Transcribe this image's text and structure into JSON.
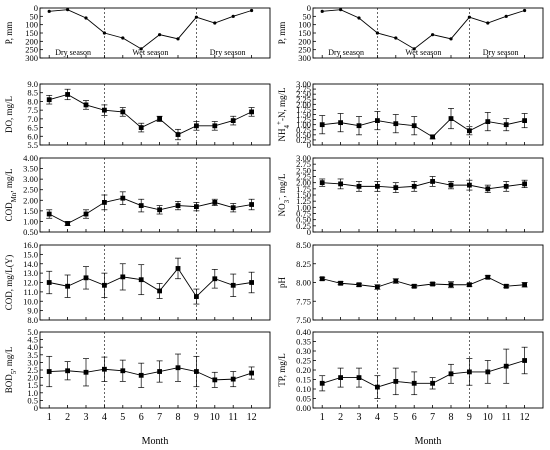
{
  "x_label": "Month",
  "seasons": [
    "Dry season",
    "Wet season",
    "Dry season"
  ],
  "chart_data": [
    {
      "type": "line",
      "ylabel": "P, mm",
      "ylim": [
        0,
        300
      ],
      "inverted": true,
      "yticks": [
        "0",
        "50",
        "100",
        "150",
        "200",
        "250",
        "300"
      ],
      "x": [
        1,
        2,
        3,
        4,
        5,
        6,
        7,
        8,
        9,
        10,
        11,
        12
      ],
      "series": [
        {
          "values": [
            20,
            10,
            60,
            150,
            180,
            245,
            160,
            185,
            55,
            90,
            50,
            15
          ]
        }
      ]
    },
    {
      "type": "line",
      "ylabel": "DO, mg/L",
      "ylim": [
        5.5,
        9.0
      ],
      "yticks": [
        "5.5",
        "6.0",
        "6.5",
        "7.0",
        "7.5",
        "8.0",
        "8.5",
        "9.0"
      ],
      "x": [
        1,
        2,
        3,
        4,
        5,
        6,
        7,
        8,
        9,
        10,
        11,
        12
      ],
      "series": [
        {
          "values": [
            8.1,
            8.4,
            7.8,
            7.5,
            7.4,
            6.5,
            7.0,
            6.1,
            6.6,
            6.6,
            6.9,
            7.4
          ],
          "errors": [
            0.25,
            0.3,
            0.25,
            0.3,
            0.25,
            0.25,
            0.15,
            0.3,
            0.25,
            0.25,
            0.25,
            0.25
          ]
        }
      ]
    },
    {
      "type": "line",
      "ylabel": "CODMn, mg/L",
      "ylim": [
        0.5,
        4.0
      ],
      "yticks": [
        "0.50",
        "1.00",
        "1.50",
        "2.00",
        "2.50",
        "3.00",
        "3.50",
        "4.00"
      ],
      "x": [
        1,
        2,
        3,
        4,
        5,
        6,
        7,
        8,
        9,
        10,
        11,
        12
      ],
      "series": [
        {
          "values": [
            1.35,
            0.9,
            1.35,
            1.9,
            2.1,
            1.75,
            1.55,
            1.75,
            1.7,
            1.9,
            1.65,
            1.8
          ],
          "errors": [
            0.2,
            0.1,
            0.2,
            0.35,
            0.3,
            0.3,
            0.2,
            0.2,
            0.2,
            0.15,
            0.2,
            0.25
          ]
        }
      ]
    },
    {
      "type": "line",
      "ylabel": "COD, mg/L(Y)",
      "ylim": [
        8.0,
        16.0
      ],
      "yticks": [
        "8.0",
        "9.0",
        "10.0",
        "11.0",
        "12.0",
        "13.0",
        "14.0",
        "15.0",
        "16.0"
      ],
      "x": [
        1,
        2,
        3,
        4,
        5,
        6,
        7,
        8,
        9,
        10,
        11,
        12
      ],
      "series": [
        {
          "values": [
            12.0,
            11.6,
            12.5,
            11.7,
            12.6,
            12.3,
            11.1,
            13.5,
            10.5,
            12.4,
            11.7,
            12.0
          ],
          "errors": [
            1.2,
            1.2,
            1.2,
            1.3,
            1.4,
            1.6,
            0.8,
            1.1,
            0.8,
            1.0,
            1.2,
            1.1
          ]
        }
      ]
    },
    {
      "type": "line",
      "ylabel": "BOD5, mg/L",
      "ylim": [
        0,
        5.0
      ],
      "yticks": [
        "0",
        "0.5",
        "1.0",
        "1.5",
        "2.0",
        "2.5",
        "3.0",
        "3.5",
        "4.0",
        "4.5",
        "5.0"
      ],
      "x": [
        1,
        2,
        3,
        4,
        5,
        6,
        7,
        8,
        9,
        10,
        11,
        12
      ],
      "series": [
        {
          "values": [
            2.4,
            2.45,
            2.35,
            2.55,
            2.45,
            2.15,
            2.4,
            2.65,
            2.4,
            1.85,
            1.9,
            2.3
          ],
          "errors": [
            1.0,
            0.6,
            0.9,
            0.8,
            0.7,
            0.8,
            0.7,
            0.9,
            1.0,
            0.5,
            0.5,
            0.4
          ]
        }
      ]
    },
    {
      "type": "line",
      "ylabel": "P, mm",
      "ylim": [
        0,
        300
      ],
      "inverted": true,
      "yticks": [
        "0",
        "50",
        "100",
        "150",
        "200",
        "250",
        "300"
      ],
      "x": [
        1,
        2,
        3,
        4,
        5,
        6,
        7,
        8,
        9,
        10,
        11,
        12
      ],
      "series": [
        {
          "values": [
            20,
            10,
            60,
            150,
            180,
            245,
            160,
            185,
            55,
            90,
            50,
            15
          ]
        }
      ]
    },
    {
      "type": "line",
      "ylabel": "NH4+-N, mg/L",
      "ylim": [
        0,
        3.0
      ],
      "yticks": [
        "0",
        "0.25",
        "0.50",
        "0.75",
        "1.00",
        "1.25",
        "1.50",
        "1.75",
        "2.00",
        "2.25",
        "2.50",
        "2.75",
        "3.00"
      ],
      "x": [
        1,
        2,
        3,
        4,
        5,
        6,
        7,
        8,
        9,
        10,
        11,
        12
      ],
      "series": [
        {
          "values": [
            1.0,
            1.1,
            0.95,
            1.2,
            1.05,
            0.95,
            0.4,
            1.3,
            0.7,
            1.15,
            1.0,
            1.2
          ],
          "errors": [
            0.45,
            0.45,
            0.45,
            0.45,
            0.45,
            0.45,
            0.1,
            0.5,
            0.2,
            0.45,
            0.3,
            0.35
          ]
        }
      ]
    },
    {
      "type": "line",
      "ylabel": "NO3-, mg/L",
      "ylim": [
        0,
        3.0
      ],
      "yticks": [
        "0",
        "0.25",
        "0.50",
        "0.75",
        "1.00",
        "1.25",
        "1.50",
        "1.75",
        "2.00",
        "2.25",
        "2.50",
        "2.75",
        "3.00"
      ],
      "x": [
        1,
        2,
        3,
        4,
        5,
        6,
        7,
        8,
        9,
        10,
        11,
        12
      ],
      "series": [
        {
          "values": [
            2.0,
            1.95,
            1.85,
            1.85,
            1.8,
            1.85,
            2.05,
            1.9,
            1.9,
            1.75,
            1.85,
            1.95
          ],
          "errors": [
            0.15,
            0.2,
            0.2,
            0.2,
            0.2,
            0.2,
            0.2,
            0.15,
            0.2,
            0.15,
            0.2,
            0.15
          ]
        }
      ]
    },
    {
      "type": "line",
      "ylabel": "pH",
      "ylim": [
        7.5,
        8.5
      ],
      "yticks": [
        "7.50",
        "7.75",
        "8.00",
        "8.25",
        "8.50"
      ],
      "x": [
        1,
        2,
        3,
        4,
        5,
        6,
        7,
        8,
        9,
        10,
        11,
        12
      ],
      "series": [
        {
          "values": [
            8.05,
            7.99,
            7.97,
            7.94,
            8.02,
            7.95,
            7.98,
            7.97,
            7.97,
            8.07,
            7.95,
            7.97
          ],
          "errors": [
            0.02,
            0.02,
            0.02,
            0.03,
            0.03,
            0.02,
            0.02,
            0.04,
            0.02,
            0.02,
            0.02,
            0.03
          ]
        }
      ]
    },
    {
      "type": "line",
      "ylabel": "TP, mg/L",
      "ylim": [
        0,
        0.4
      ],
      "yticks": [
        "0.00",
        "0.05",
        "0.10",
        "0.15",
        "0.20",
        "0.25",
        "0.30",
        "0.35",
        "0.40"
      ],
      "x": [
        1,
        2,
        3,
        4,
        5,
        6,
        7,
        8,
        9,
        10,
        11,
        12
      ],
      "series": [
        {
          "values": [
            0.13,
            0.16,
            0.16,
            0.11,
            0.14,
            0.13,
            0.13,
            0.18,
            0.19,
            0.19,
            0.22,
            0.25
          ],
          "errors": [
            0.04,
            0.05,
            0.05,
            0.06,
            0.07,
            0.06,
            0.03,
            0.05,
            0.07,
            0.06,
            0.09,
            0.07
          ]
        }
      ]
    }
  ]
}
